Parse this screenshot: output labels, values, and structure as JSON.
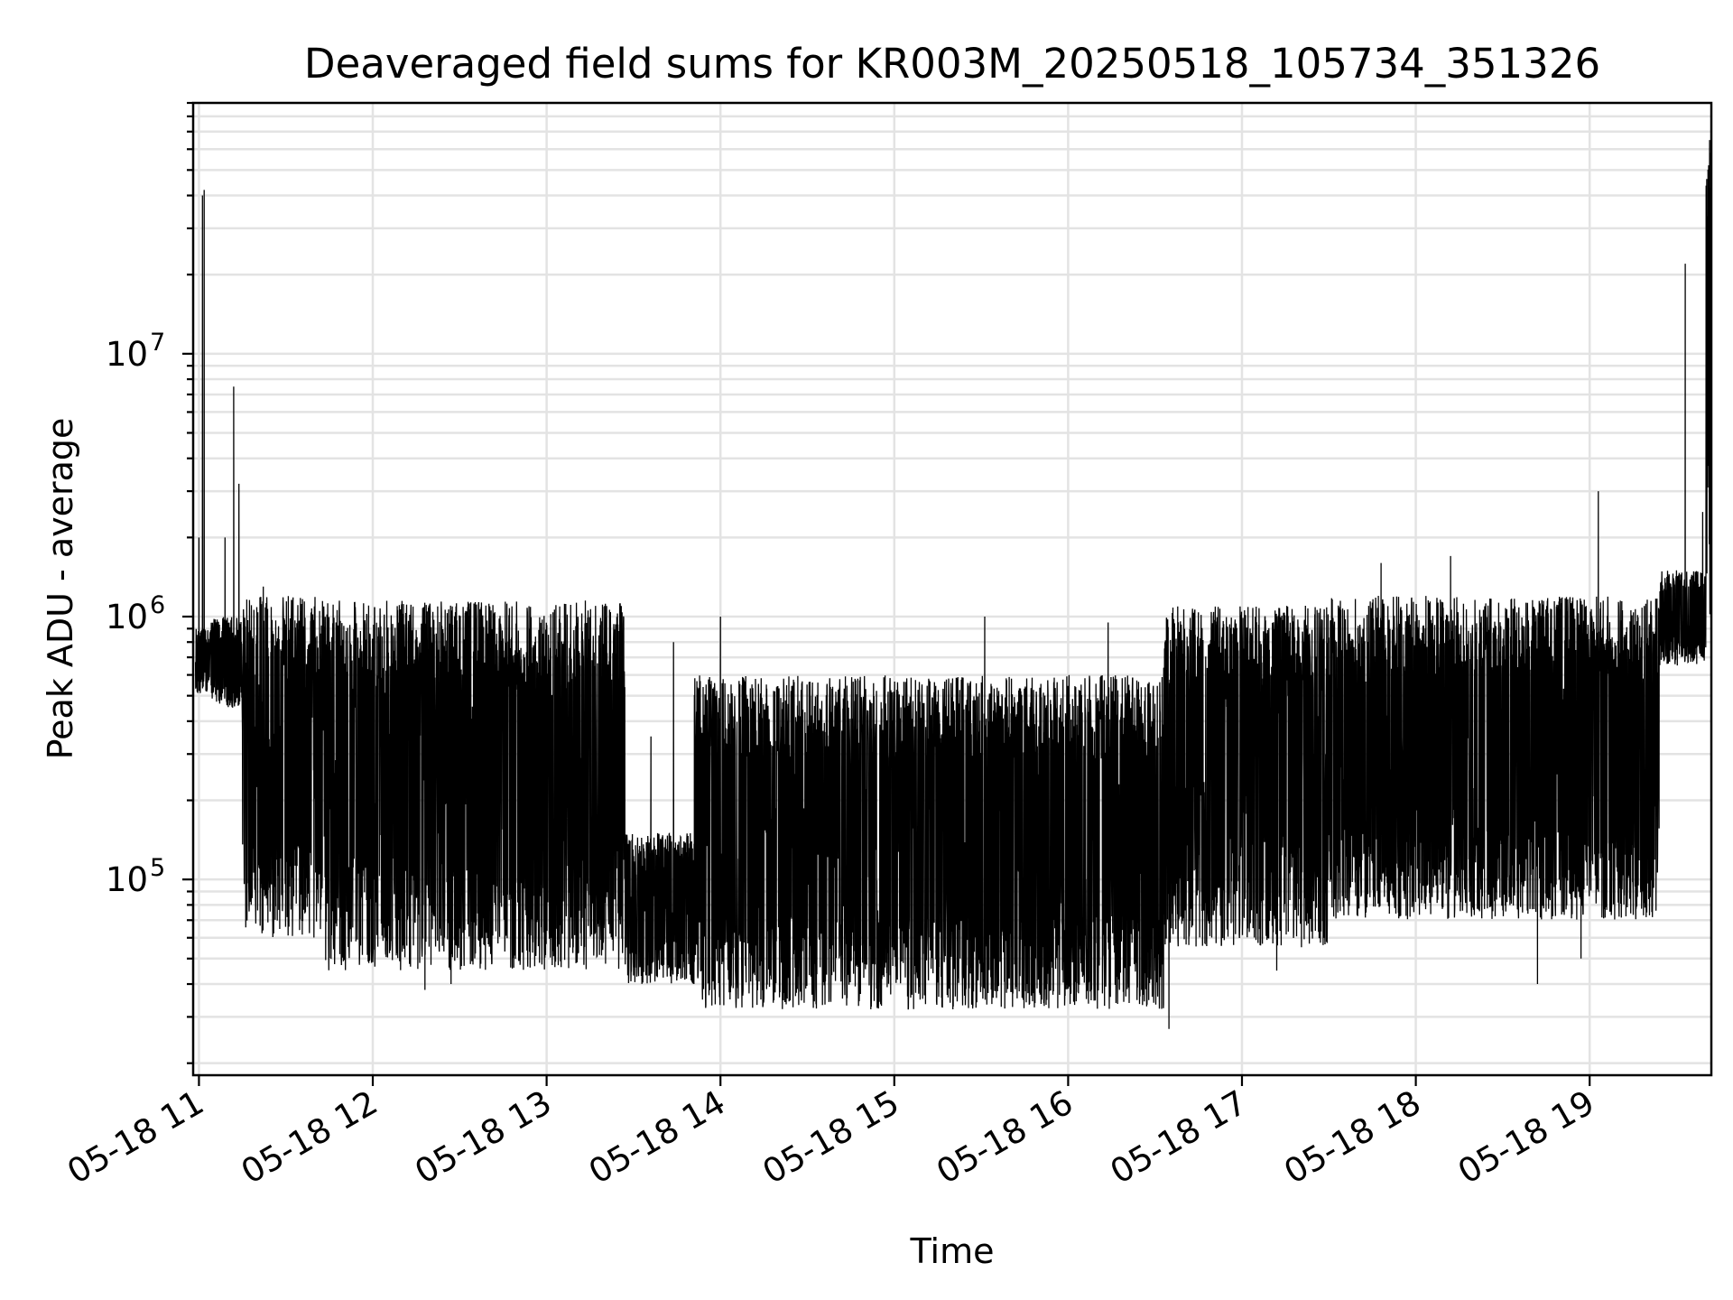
{
  "chart_data": {
    "type": "line",
    "title": "Deaveraged field sums for KR003M_20250518_105734_351326",
    "xlabel": "Time",
    "ylabel": "Peak ADU - average",
    "yscale": "log",
    "grid": true,
    "xlim": [
      "05-18 10:58",
      "05-18 19:42"
    ],
    "ylim": [
      18000,
      90000000
    ],
    "x_tick_labels": [
      "05-18 11",
      "05-18 12",
      "05-18 13",
      "05-18 14",
      "05-18 15",
      "05-18 16",
      "05-18 17",
      "05-18 18",
      "05-18 19"
    ],
    "x_ticks_hours": [
      11,
      12,
      13,
      14,
      15,
      16,
      17,
      18,
      19
    ],
    "y_ticks": [
      {
        "value": 100000,
        "base": "10",
        "exp": "5"
      },
      {
        "value": 1000000,
        "base": "10",
        "exp": "6"
      },
      {
        "value": 10000000,
        "base": "10",
        "exp": "7"
      }
    ],
    "series": [
      {
        "color": "#000000",
        "segments": [
          {
            "from_hour": 10.98,
            "to_hour": 11.07,
            "low": 500000,
            "high": 900000,
            "spikes": [
              [
                11.02,
                40000000
              ],
              [
                11.03,
                42000000
              ],
              [
                11.0,
                2000000
              ]
            ]
          },
          {
            "from_hour": 11.07,
            "to_hour": 11.25,
            "low": 450000,
            "high": 1000000,
            "spikes": [
              [
                11.2,
                7500000
              ],
              [
                11.23,
                3200000
              ],
              [
                11.15,
                2000000
              ]
            ]
          },
          {
            "from_hour": 11.25,
            "to_hour": 11.7,
            "low": 60000,
            "high": 1200000,
            "spikes": [
              [
                11.37,
                1300000
              ]
            ]
          },
          {
            "from_hour": 11.7,
            "to_hour": 13.45,
            "low": 45000,
            "high": 1150000,
            "spikes": [
              [
                12.3,
                38000
              ],
              [
                12.45,
                40000
              ]
            ]
          },
          {
            "from_hour": 13.45,
            "to_hour": 13.85,
            "low": 40000,
            "high": 150000,
            "spikes": [
              [
                13.73,
                800000
              ],
              [
                13.6,
                350000
              ]
            ]
          },
          {
            "from_hour": 13.85,
            "to_hour": 16.55,
            "low": 32000,
            "high": 600000,
            "spikes": [
              [
                14.0,
                1000000
              ],
              [
                15.52,
                1000000
              ],
              [
                16.23,
                950000
              ],
              [
                16.58,
                27000
              ]
            ]
          },
          {
            "from_hour": 16.55,
            "to_hour": 17.5,
            "low": 55000,
            "high": 1100000,
            "spikes": [
              [
                17.2,
                45000
              ]
            ]
          },
          {
            "from_hour": 17.5,
            "to_hour": 19.4,
            "low": 70000,
            "high": 1200000,
            "spikes": [
              [
                17.8,
                1600000
              ],
              [
                18.2,
                1700000
              ],
              [
                19.05,
                3000000
              ],
              [
                18.7,
                40000
              ],
              [
                18.95,
                50000
              ]
            ]
          },
          {
            "from_hour": 19.4,
            "to_hour": 19.67,
            "low": 650000,
            "high": 1500000,
            "spikes": [
              [
                19.55,
                22000000
              ],
              [
                19.65,
                2500000
              ]
            ]
          },
          {
            "from_hour": 19.67,
            "to_hour": 19.7,
            "low": 1000000,
            "high": 60000000,
            "spikes": [
              [
                19.69,
                65000000
              ]
            ]
          }
        ]
      }
    ]
  }
}
